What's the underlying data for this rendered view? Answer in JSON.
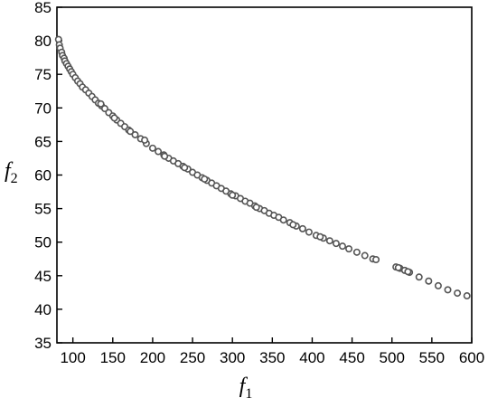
{
  "chart_data": {
    "type": "scatter",
    "title": "",
    "xlabel": {
      "base": "f",
      "sub": "1"
    },
    "ylabel": {
      "base": "f",
      "sub": "2"
    },
    "xlim": [
      80,
      600
    ],
    "ylim": [
      35,
      85
    ],
    "xticks": [
      100,
      150,
      200,
      250,
      300,
      350,
      400,
      450,
      500,
      550,
      600
    ],
    "yticks": [
      35,
      40,
      45,
      50,
      55,
      60,
      65,
      70,
      75,
      80,
      85
    ],
    "grid": false,
    "legend": "none",
    "marker": {
      "shape": "circle",
      "fill": "#ffffff",
      "stroke": "#555555"
    },
    "series": [
      {
        "points": [
          [
            82,
            80.2
          ],
          [
            83,
            79.4
          ],
          [
            84,
            78.9
          ],
          [
            86,
            78.3
          ],
          [
            87,
            77.8
          ],
          [
            89,
            77.4
          ],
          [
            90,
            77.0
          ],
          [
            92,
            76.6
          ],
          [
            94,
            76.2
          ],
          [
            96,
            75.8
          ],
          [
            98,
            75.4
          ],
          [
            100,
            75.0
          ],
          [
            103,
            74.5
          ],
          [
            106,
            74.0
          ],
          [
            109,
            73.6
          ],
          [
            112,
            73.1
          ],
          [
            116,
            72.7
          ],
          [
            120,
            72.2
          ],
          [
            124,
            71.7
          ],
          [
            128,
            71.2
          ],
          [
            132,
            70.7
          ],
          [
            136,
            70.3
          ],
          [
            140,
            69.9
          ],
          [
            145,
            69.3
          ],
          [
            150,
            68.8
          ],
          [
            155,
            68.2
          ],
          [
            160,
            67.7
          ],
          [
            165,
            67.2
          ],
          [
            170,
            66.7
          ],
          [
            178,
            66.0
          ],
          [
            185,
            65.4
          ],
          [
            192,
            64.7
          ],
          [
            200,
            64.0
          ],
          [
            207,
            63.5
          ],
          [
            214,
            63.0
          ],
          [
            220,
            62.5
          ],
          [
            226,
            62.1
          ],
          [
            232,
            61.7
          ],
          [
            238,
            61.3
          ],
          [
            244,
            60.9
          ],
          [
            250,
            60.4
          ],
          [
            256,
            60.0
          ],
          [
            262,
            59.6
          ],
          [
            268,
            59.2
          ],
          [
            274,
            58.8
          ],
          [
            280,
            58.4
          ],
          [
            286,
            58.0
          ],
          [
            292,
            57.6
          ],
          [
            298,
            57.2
          ],
          [
            304,
            56.9
          ],
          [
            310,
            56.5
          ],
          [
            316,
            56.1
          ],
          [
            322,
            55.8
          ],
          [
            328,
            55.4
          ],
          [
            334,
            55.0
          ],
          [
            340,
            54.7
          ],
          [
            346,
            54.3
          ],
          [
            352,
            54.0
          ],
          [
            358,
            53.7
          ],
          [
            364,
            53.3
          ],
          [
            372,
            52.9
          ],
          [
            380,
            52.4
          ],
          [
            388,
            52.0
          ],
          [
            396,
            51.5
          ],
          [
            405,
            51.0
          ],
          [
            414,
            50.6
          ],
          [
            422,
            50.2
          ],
          [
            430,
            49.8
          ],
          [
            438,
            49.4
          ],
          [
            446,
            49.0
          ],
          [
            456,
            48.5
          ],
          [
            466,
            48.0
          ],
          [
            476,
            47.5
          ],
          [
            505,
            46.3
          ],
          [
            510,
            46.1
          ],
          [
            516,
            45.8
          ],
          [
            522,
            45.5
          ],
          [
            534,
            44.8
          ],
          [
            546,
            44.2
          ],
          [
            558,
            43.5
          ],
          [
            570,
            42.9
          ],
          [
            582,
            42.4
          ],
          [
            594,
            42.0
          ],
          [
            135,
            70.6
          ],
          [
            152,
            68.5
          ],
          [
            172,
            66.5
          ],
          [
            190,
            65.2
          ],
          [
            215,
            62.8
          ],
          [
            240,
            61.1
          ],
          [
            265,
            59.4
          ],
          [
            300,
            57.0
          ],
          [
            330,
            55.2
          ],
          [
            376,
            52.6
          ],
          [
            410,
            50.8
          ],
          [
            480,
            47.4
          ],
          [
            508,
            46.2
          ],
          [
            520,
            45.6
          ]
        ]
      }
    ]
  }
}
